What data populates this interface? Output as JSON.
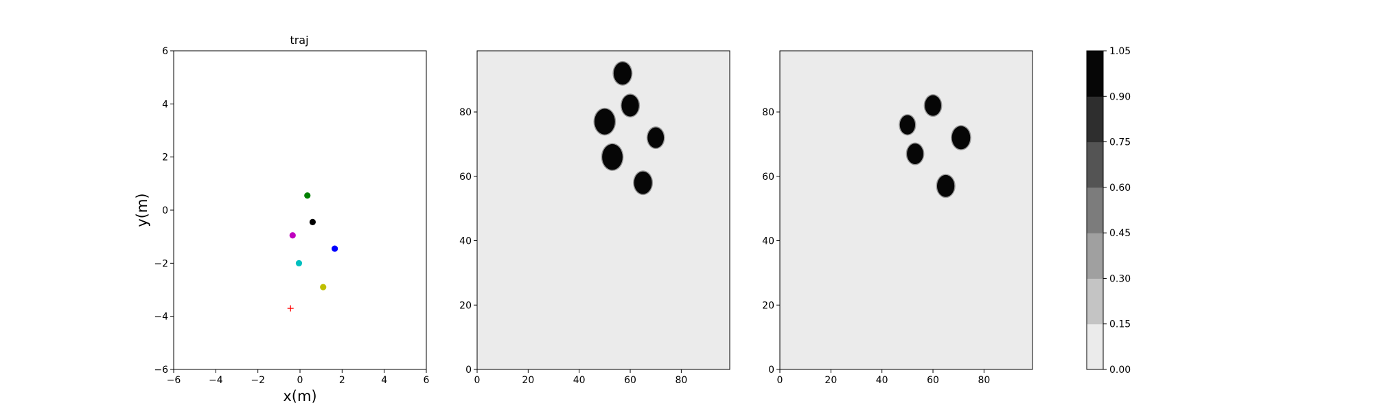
{
  "chart_data": [
    {
      "type": "scatter",
      "title": "traj",
      "xlabel": "x(m)",
      "ylabel": "y(m)",
      "xlim": [
        -6,
        6
      ],
      "ylim": [
        -6,
        6
      ],
      "xticks": [
        "−6",
        "−4",
        "−2",
        "0",
        "2",
        "4",
        "6"
      ],
      "yticks": [
        "−6",
        "−4",
        "−2",
        "0",
        "2",
        "4",
        "6"
      ],
      "grid": false,
      "points": [
        {
          "x": 0.35,
          "y": 0.55,
          "color": "#008000",
          "marker": "circle"
        },
        {
          "x": 0.6,
          "y": -0.45,
          "color": "#000000",
          "marker": "circle"
        },
        {
          "x": -0.35,
          "y": -0.95,
          "color": "#bf00bf",
          "marker": "circle"
        },
        {
          "x": 1.65,
          "y": -1.45,
          "color": "#0000ff",
          "marker": "circle"
        },
        {
          "x": -0.05,
          "y": -2.0,
          "color": "#00bfbf",
          "marker": "circle"
        },
        {
          "x": 1.1,
          "y": -2.9,
          "color": "#bfbf00",
          "marker": "circle"
        },
        {
          "x": -0.45,
          "y": -3.7,
          "color": "#ff0000",
          "marker": "plus"
        }
      ]
    },
    {
      "type": "heatmap",
      "title": "",
      "xlim": [
        0,
        99
      ],
      "ylim": [
        0,
        99
      ],
      "xticks": [
        "0",
        "20",
        "40",
        "60",
        "80"
      ],
      "yticks": [
        "0",
        "20",
        "40",
        "60",
        "80"
      ],
      "background_value": 0.05,
      "blobs": [
        {
          "x": 57,
          "y": 92,
          "r": 3.5,
          "value": 1.0
        },
        {
          "x": 60,
          "y": 82,
          "r": 3.4,
          "value": 1.0
        },
        {
          "x": 50,
          "y": 77,
          "r": 4.0,
          "value": 1.0
        },
        {
          "x": 70,
          "y": 72,
          "r": 3.2,
          "value": 1.0
        },
        {
          "x": 53,
          "y": 66,
          "r": 4.0,
          "value": 1.0
        },
        {
          "x": 65,
          "y": 58,
          "r": 3.5,
          "value": 1.0
        }
      ]
    },
    {
      "type": "heatmap",
      "title": "",
      "xlim": [
        0,
        99
      ],
      "ylim": [
        0,
        99
      ],
      "xticks": [
        "0",
        "20",
        "40",
        "60",
        "80"
      ],
      "yticks": [
        "0",
        "20",
        "40",
        "60",
        "80"
      ],
      "background_value": 0.05,
      "blobs": [
        {
          "x": 60,
          "y": 82,
          "r": 3.2,
          "value": 1.0
        },
        {
          "x": 50,
          "y": 76,
          "r": 3.0,
          "value": 0.95
        },
        {
          "x": 71,
          "y": 72,
          "r": 3.6,
          "value": 1.0
        },
        {
          "x": 53,
          "y": 67,
          "r": 3.2,
          "value": 1.0
        },
        {
          "x": 65,
          "y": 57,
          "r": 3.4,
          "value": 1.0
        }
      ]
    }
  ],
  "colorbar": {
    "levels": [
      "0.00",
      "0.15",
      "0.30",
      "0.45",
      "0.60",
      "0.75",
      "0.90",
      "1.05"
    ],
    "colors": [
      "#ebebeb",
      "#c4c4c4",
      "#a0a0a0",
      "#7c7c7c",
      "#545454",
      "#2e2e2e",
      "#060606"
    ]
  }
}
